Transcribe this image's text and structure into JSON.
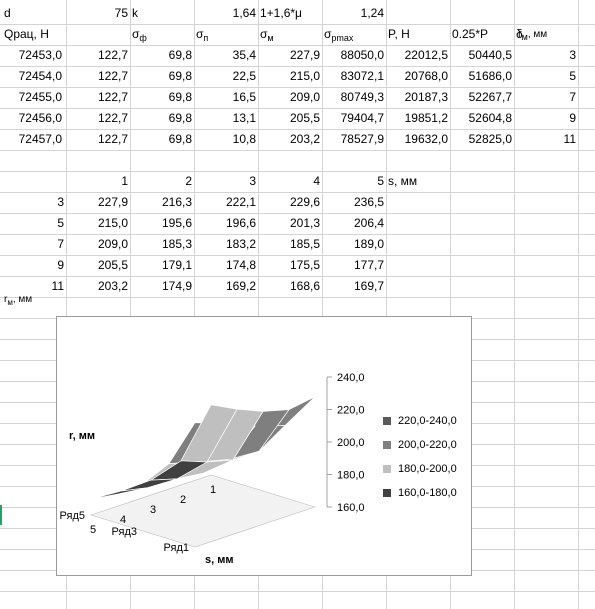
{
  "params": {
    "d_label": "d",
    "d_value": "75",
    "k_label": "k",
    "k_value": "1,64",
    "expr_label": "1+1,6*μ",
    "expr_value": "1,24"
  },
  "table1": {
    "headers": [
      {
        "main": "Qрац, Н",
        "sub": ""
      },
      {
        "main": "σ",
        "sub": "ф"
      },
      {
        "main": "σ",
        "sub": "п"
      },
      {
        "main": "σ",
        "sub": "м"
      },
      {
        "main": "σ",
        "sub": "pmax"
      },
      {
        "main": "P, H",
        "sub": ""
      },
      {
        "main": "0.25*P",
        "sub": ""
      },
      {
        "main": "δ",
        "sub": ""
      },
      {
        "main": "r",
        "sub": "м",
        "suffix": ", мм"
      }
    ],
    "rows": [
      [
        "72453,0",
        "122,7",
        "69,8",
        "35,4",
        "227,9",
        "88050,0",
        "22012,5",
        "50440,5",
        "3"
      ],
      [
        "72454,0",
        "122,7",
        "69,8",
        "22,5",
        "215,0",
        "83072,1",
        "20768,0",
        "51686,0",
        "5"
      ],
      [
        "72455,0",
        "122,7",
        "69,8",
        "16,5",
        "209,0",
        "80749,3",
        "20187,3",
        "52267,7",
        "7"
      ],
      [
        "72456,0",
        "122,7",
        "69,8",
        "13,1",
        "205,5",
        "79404,7",
        "19851,2",
        "52604,8",
        "9"
      ],
      [
        "72457,0",
        "122,7",
        "69,8",
        "10,8",
        "203,2",
        "78527,9",
        "19632,0",
        "52825,0",
        "11"
      ]
    ]
  },
  "table2": {
    "col_headers": [
      "1",
      "2",
      "3",
      "4",
      "5"
    ],
    "s_label": "s, мм",
    "rows": [
      {
        "r": "3",
        "values": [
          "227,9",
          "216,3",
          "222,1",
          "229,6",
          "236,5"
        ]
      },
      {
        "r": "5",
        "values": [
          "215,0",
          "195,6",
          "196,6",
          "201,3",
          "206,4"
        ]
      },
      {
        "r": "7",
        "values": [
          "209,0",
          "185,3",
          "183,2",
          "185,5",
          "189,0"
        ]
      },
      {
        "r": "9",
        "values": [
          "205,5",
          "179,1",
          "174,8",
          "175,5",
          "177,7"
        ]
      },
      {
        "r": "11",
        "values": [
          "203,2",
          "174,9",
          "169,2",
          "168,6",
          "169,7"
        ]
      }
    ],
    "r_label_main": "r",
    "r_label_sub": "м",
    "r_label_suffix": ", мм"
  },
  "chart_data": {
    "type": "surface",
    "title": "",
    "x_label": "s, мм",
    "y_label": "r, мм",
    "x_ticks": [
      "1",
      "2",
      "3",
      "4",
      "5"
    ],
    "y_ticks": [
      "Ряд1",
      "Ряд3",
      "Ряд5"
    ],
    "z_ticks": [
      "240,0",
      "220,0",
      "200,0",
      "180,0",
      "160,0"
    ],
    "zlim": [
      160,
      240
    ],
    "s": [
      1,
      2,
      3,
      4,
      5
    ],
    "r": [
      3,
      5,
      7,
      9,
      11
    ],
    "z": [
      [
        227.9,
        216.3,
        222.1,
        229.6,
        236.5
      ],
      [
        215.0,
        195.6,
        196.6,
        201.3,
        206.4
      ],
      [
        209.0,
        185.3,
        183.2,
        185.5,
        189.0
      ],
      [
        205.5,
        179.1,
        174.8,
        175.5,
        177.7
      ],
      [
        203.2,
        174.9,
        169.2,
        168.6,
        169.7
      ]
    ],
    "legend": [
      {
        "label": "220,0-240,0",
        "color": "#595959"
      },
      {
        "label": "200,0-220,0",
        "color": "#7f7f7f"
      },
      {
        "label": "180,0-200,0",
        "color": "#bfbfbf"
      },
      {
        "label": "160,0-180,0",
        "color": "#404040"
      }
    ]
  }
}
